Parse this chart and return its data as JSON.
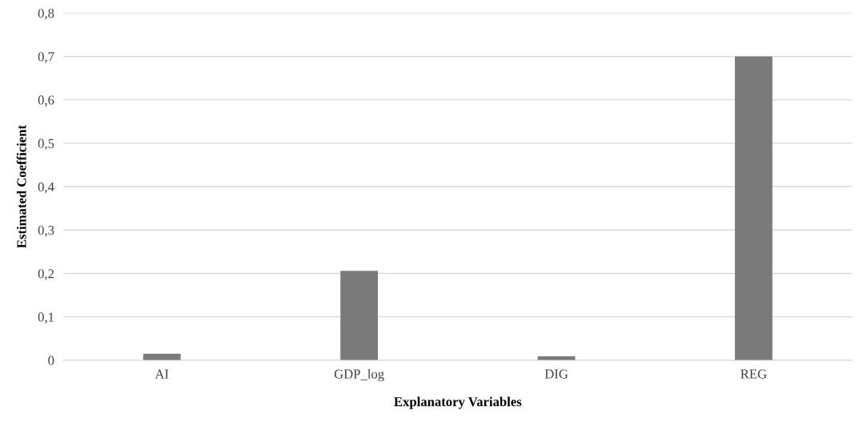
{
  "chart_data": {
    "type": "bar",
    "xlabel": "Explanatory Variables",
    "ylabel": "Estimated Coefficient",
    "categories": [
      "AI",
      "GDP_log",
      "DIG",
      "REG"
    ],
    "values": [
      0.015,
      0.206,
      0.009,
      0.7
    ],
    "color": "#7a7a7a",
    "ylim": [
      0,
      0.8
    ],
    "yticks": [
      0,
      {
        "value": 0.1,
        "label": "0,1"
      },
      {
        "value": 0.2,
        "label": "0,2"
      },
      {
        "value": 0.3,
        "label": "0,3"
      },
      {
        "value": 0.4,
        "label": "0,4"
      },
      {
        "value": 0.5,
        "label": "0,5"
      },
      {
        "value": 0.6,
        "label": "0,6"
      },
      {
        "value": 0.7,
        "label": "0,7"
      },
      {
        "value": 0.8,
        "label": "0,8"
      }
    ],
    "grid": "y",
    "legend": false
  }
}
